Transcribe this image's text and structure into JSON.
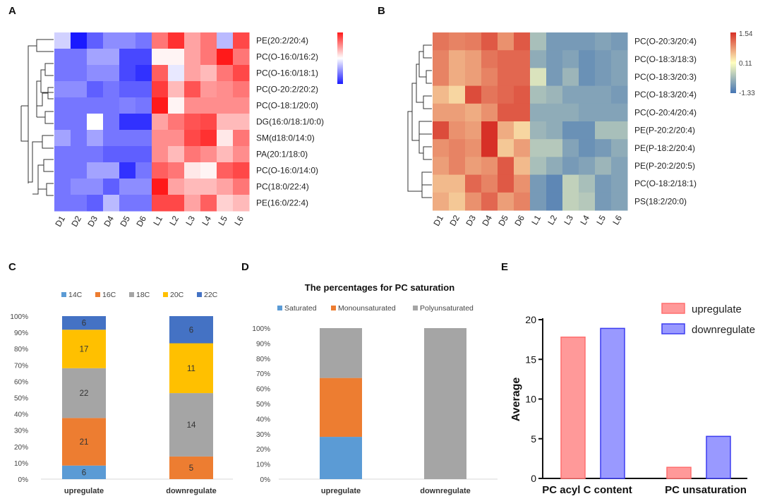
{
  "panels": {
    "a": "A",
    "b": "B",
    "c": "C",
    "d": "D",
    "e": "E"
  },
  "heatmap_a": {
    "type": "heatmap",
    "columns": [
      "D1",
      "D2",
      "D3",
      "D4",
      "D5",
      "D6",
      "L1",
      "L2",
      "L3",
      "L4",
      "L5",
      "L6"
    ],
    "rows": [
      "PE(20:2/20:4)",
      "PC(O-16:0/16:2)",
      "PC(O-16:0/18:1)",
      "PC(O-20:2/20:2)",
      "PC(O-18:1/20:0)",
      "DG(16:0/18:1/0:0)",
      "SM(d18:0/14:0)",
      "PA(20:1/18:0)",
      "PC(O-16:0/14:0)",
      "PC(18:0/22:4)",
      "PE(16:0/22:4)"
    ],
    "values": [
      [
        -0.2,
        -1.0,
        -0.7,
        -0.5,
        -0.5,
        -0.6,
        0.6,
        0.9,
        0.4,
        0.6,
        -0.3,
        0.8
      ],
      [
        -0.6,
        -0.6,
        -0.4,
        -0.4,
        -0.8,
        -0.8,
        0.05,
        0.05,
        0.4,
        0.6,
        1.0,
        0.6
      ],
      [
        -0.6,
        -0.6,
        -0.5,
        -0.5,
        -0.8,
        -0.9,
        0.7,
        -0.1,
        0.4,
        0.3,
        0.6,
        0.8
      ],
      [
        -0.5,
        -0.5,
        -0.7,
        -0.6,
        -0.7,
        -0.7,
        0.85,
        0.3,
        0.75,
        0.45,
        0.5,
        0.6
      ],
      [
        -0.6,
        -0.6,
        -0.6,
        -0.6,
        -0.55,
        -0.6,
        1.0,
        0.05,
        0.5,
        0.5,
        0.5,
        0.5
      ],
      [
        -0.6,
        -0.6,
        0.0,
        -0.6,
        -0.9,
        -0.9,
        0.4,
        0.6,
        0.75,
        0.8,
        0.3,
        0.3
      ],
      [
        -0.4,
        -0.6,
        -0.4,
        -0.6,
        -0.6,
        -0.6,
        0.5,
        0.5,
        0.8,
        0.9,
        0.1,
        0.6
      ],
      [
        -0.6,
        -0.6,
        -0.6,
        -0.7,
        -0.7,
        -0.7,
        0.5,
        0.3,
        0.6,
        0.5,
        0.3,
        0.5
      ],
      [
        -0.6,
        -0.6,
        -0.4,
        -0.4,
        -0.9,
        -0.6,
        0.7,
        0.6,
        0.1,
        0.05,
        0.7,
        0.8
      ],
      [
        -0.6,
        -0.5,
        -0.5,
        -0.7,
        -0.5,
        -0.5,
        1.0,
        0.4,
        0.3,
        0.3,
        0.4,
        0.6
      ],
      [
        -0.6,
        -0.6,
        -0.7,
        -0.3,
        -0.6,
        -0.6,
        0.8,
        0.8,
        0.4,
        0.7,
        0.2,
        0.3
      ]
    ],
    "colors": {
      "low": "#1a1aff",
      "mid": "#ffffff",
      "high": "#ff1a1a"
    }
  },
  "heatmap_b": {
    "type": "heatmap",
    "columns": [
      "D1",
      "D2",
      "D3",
      "D4",
      "D5",
      "D6",
      "L1",
      "L2",
      "L3",
      "L4",
      "L5",
      "L6"
    ],
    "rows": [
      "PC(O-20:3/20:4)",
      "PC(O-18:3/18:3)",
      "PC(O-18:3/20:3)",
      "PC(O-18:3/20:4)",
      "PC(O-20:4/20:4)",
      "PE(P-20:2/20:4)",
      "PE(P-18:2/20:4)",
      "PE(P-20:2/20:5)",
      "PC(O-18:2/18:1)",
      "PS(18:2/20:0)"
    ],
    "values": [
      [
        1.0,
        0.9,
        0.95,
        1.2,
        0.8,
        1.2,
        -0.7,
        -1.1,
        -1.1,
        -1.1,
        -1.0,
        -1.1
      ],
      [
        0.9,
        0.6,
        0.7,
        1.0,
        1.1,
        1.1,
        -0.9,
        -1.1,
        -1.0,
        -1.2,
        -1.1,
        -1.0
      ],
      [
        0.9,
        0.6,
        0.7,
        0.9,
        1.1,
        1.1,
        -0.3,
        -1.1,
        -0.8,
        -1.2,
        -1.1,
        -1.0
      ],
      [
        0.5,
        0.3,
        1.3,
        1.0,
        1.1,
        1.2,
        -0.7,
        -0.8,
        -1.0,
        -1.0,
        -1.0,
        -1.1
      ],
      [
        0.7,
        0.7,
        0.6,
        0.8,
        1.2,
        1.2,
        -0.9,
        -0.9,
        -0.9,
        -1.0,
        -1.0,
        -1.0
      ],
      [
        1.3,
        0.8,
        0.7,
        1.5,
        0.6,
        0.3,
        -0.8,
        -0.9,
        -1.2,
        -1.2,
        -0.7,
        -0.7
      ],
      [
        0.8,
        0.9,
        0.8,
        1.5,
        0.4,
        0.7,
        -0.6,
        -0.6,
        -1.0,
        -1.2,
        -1.1,
        -0.9
      ],
      [
        0.7,
        0.9,
        0.7,
        0.8,
        1.2,
        0.5,
        -0.7,
        -0.9,
        -1.1,
        -1.0,
        -0.8,
        -1.0
      ],
      [
        0.5,
        0.5,
        1.1,
        0.9,
        1.2,
        0.8,
        -1.1,
        -1.3,
        -0.5,
        -0.7,
        -1.1,
        -1.0
      ],
      [
        0.6,
        0.4,
        0.8,
        1.1,
        0.7,
        0.9,
        -1.1,
        -1.3,
        -0.5,
        -0.6,
        -1.1,
        -1.0
      ]
    ],
    "scale_labels": [
      "1.54",
      "0.11",
      "-1.33"
    ],
    "colors": {
      "low": "#4575b4",
      "mid": "#ffffbf",
      "high": "#d73027"
    }
  },
  "chart_c": {
    "type": "bar",
    "stacked": true,
    "categories": [
      "upregulate",
      "downregulate"
    ],
    "legend": [
      "14C",
      "16C",
      "18C",
      "20C",
      "22C"
    ],
    "colors": [
      "#5b9bd5",
      "#ed7d31",
      "#a5a5a5",
      "#ffc000",
      "#4472c4"
    ],
    "series": [
      {
        "name": "14C",
        "values": [
          6,
          0
        ]
      },
      {
        "name": "16C",
        "values": [
          21,
          5
        ]
      },
      {
        "name": "18C",
        "values": [
          22,
          14
        ]
      },
      {
        "name": "20C",
        "values": [
          17,
          11
        ]
      },
      {
        "name": "22C",
        "values": [
          6,
          6
        ]
      }
    ],
    "segment_labels": [
      [
        "6",
        "21",
        "22",
        "17",
        "6"
      ],
      [
        "",
        "5",
        "14",
        "11",
        "6"
      ]
    ],
    "yticks": [
      "0%",
      "10%",
      "20%",
      "30%",
      "40%",
      "50%",
      "60%",
      "70%",
      "80%",
      "90%",
      "100%"
    ]
  },
  "chart_d": {
    "type": "bar",
    "stacked": true,
    "title": "The  percentages for PC saturation",
    "categories": [
      "upregulate",
      "downregulate"
    ],
    "legend": [
      "Saturated",
      "Monounsaturated",
      "Polyunsaturated"
    ],
    "colors": [
      "#5b9bd5",
      "#ed7d31",
      "#a5a5a5"
    ],
    "series": [
      {
        "name": "Saturated",
        "values": [
          28,
          0
        ]
      },
      {
        "name": "Monounsaturated",
        "values": [
          39,
          0
        ]
      },
      {
        "name": "Polyunsaturated",
        "values": [
          33,
          100
        ]
      }
    ],
    "yticks": [
      "0%",
      "10%",
      "20%",
      "30%",
      "40%",
      "50%",
      "60%",
      "70%",
      "80%",
      "90%",
      "100%"
    ]
  },
  "chart_e": {
    "type": "bar",
    "categories": [
      "PC acyl C content",
      "PC unsaturation"
    ],
    "series": [
      {
        "name": "upregulate",
        "values": [
          17.8,
          1.4
        ],
        "color": "#ff9999",
        "stroke": "#ff6f6f"
      },
      {
        "name": "downregulate",
        "values": [
          18.9,
          5.3
        ],
        "color": "#9999ff",
        "stroke": "#3c3cf0"
      }
    ],
    "ylabel": "Average",
    "ylim": [
      0,
      20
    ],
    "yticks": [
      "0",
      "5",
      "10",
      "15",
      "20"
    ]
  }
}
